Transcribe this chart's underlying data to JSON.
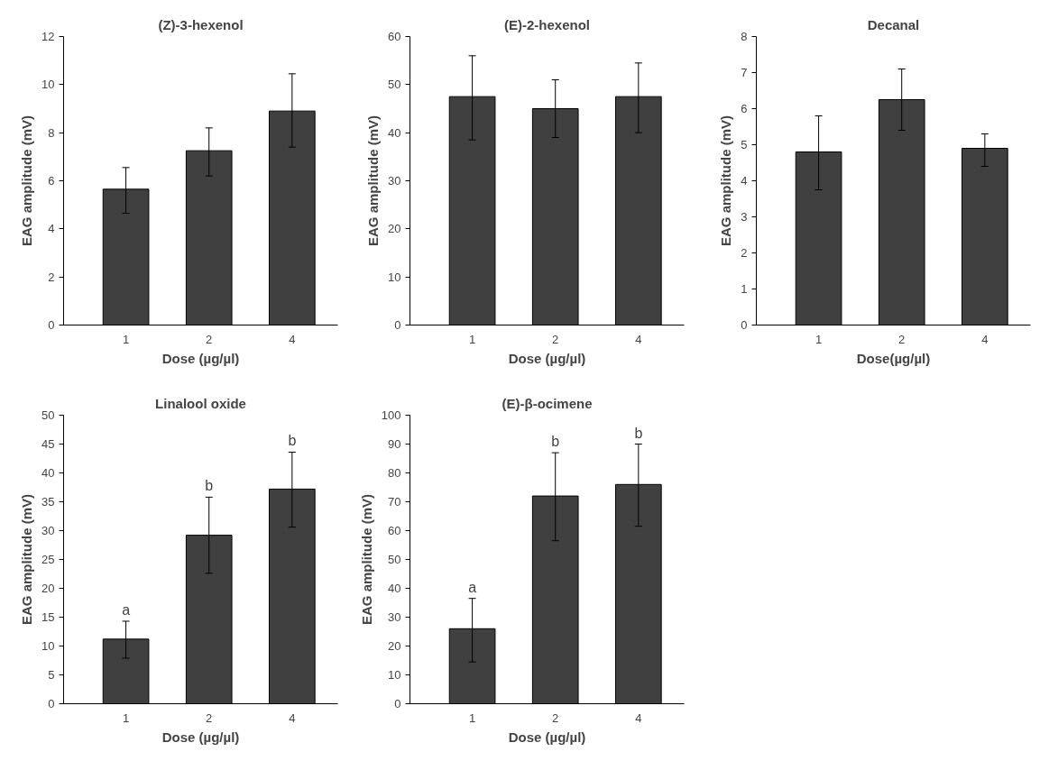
{
  "chart_data": [
    {
      "type": "bar",
      "title": "(Z)-3-hexenol",
      "xlabel": "Dose (µg/µl)",
      "ylabel": "EAG amplitude (mV)",
      "categories": [
        "1",
        "2",
        "4"
      ],
      "values": [
        5.65,
        7.25,
        8.9
      ],
      "errors": [
        [
          4.65,
          6.55
        ],
        [
          6.2,
          8.2
        ],
        [
          7.4,
          10.45
        ]
      ],
      "color": "#404040",
      "ylim": [
        0,
        12
      ],
      "yticks": [
        0,
        2,
        4,
        6,
        8,
        10,
        12
      ],
      "grid": false
    },
    {
      "type": "bar",
      "title": "(E)-2-hexenol",
      "xlabel": "Dose (µg/µl)",
      "ylabel": "EAG amplitude (mV)",
      "categories": [
        "1",
        "2",
        "4"
      ],
      "values": [
        47.5,
        45,
        47.5
      ],
      "errors": [
        [
          38.5,
          56
        ],
        [
          39,
          51
        ],
        [
          40,
          54.5
        ]
      ],
      "color": "#404040",
      "ylim": [
        0,
        60
      ],
      "yticks": [
        0,
        10,
        20,
        30,
        40,
        50,
        60
      ],
      "grid": false
    },
    {
      "type": "bar",
      "title": "Decanal",
      "xlabel": "Dose(µg/µl)",
      "ylabel": "EAG amplitude (mV)",
      "categories": [
        "1",
        "2",
        "4"
      ],
      "values": [
        4.8,
        6.25,
        4.9
      ],
      "errors": [
        [
          3.75,
          5.8
        ],
        [
          5.4,
          7.1
        ],
        [
          4.4,
          5.3
        ]
      ],
      "color": "#404040",
      "ylim": [
        0,
        8
      ],
      "yticks": [
        0,
        1,
        2,
        3,
        4,
        5,
        6,
        7,
        8
      ],
      "grid": false
    },
    {
      "type": "bar",
      "title": "Linalool oxide",
      "xlabel": "Dose (µg/µl)",
      "ylabel": "EAG amplitude (mV)",
      "categories": [
        "1",
        "2",
        "4"
      ],
      "values": [
        11.2,
        29.2,
        37.2
      ],
      "errors": [
        [
          7.9,
          14.3
        ],
        [
          22.6,
          35.8
        ],
        [
          30.6,
          43.6
        ]
      ],
      "color": "#404040",
      "ylim": [
        0,
        50
      ],
      "yticks": [
        0,
        5,
        10,
        15,
        20,
        25,
        30,
        35,
        40,
        45,
        50
      ],
      "grid": false,
      "annotations": [
        {
          "text": "a",
          "x": "1",
          "y": 14.3
        },
        {
          "text": "b",
          "x": "2",
          "y": 35.8
        },
        {
          "text": "b",
          "x": "4",
          "y": 43.6
        }
      ]
    },
    {
      "type": "bar",
      "title": "(E)-β-ocimene",
      "xlabel": "Dose (µg/µl)",
      "ylabel": "EAG amplitude (mV)",
      "categories": [
        "1",
        "2",
        "4"
      ],
      "values": [
        26,
        72,
        76
      ],
      "errors": [
        [
          14.5,
          36.5
        ],
        [
          56.5,
          87
        ],
        [
          61.5,
          90
        ]
      ],
      "color": "#404040",
      "ylim": [
        0,
        100
      ],
      "yticks": [
        0,
        10,
        20,
        30,
        40,
        50,
        60,
        70,
        80,
        90,
        100
      ],
      "grid": false,
      "annotations": [
        {
          "text": "a",
          "x": "1",
          "y": 36.5
        },
        {
          "text": "b",
          "x": "2",
          "y": 87
        },
        {
          "text": "b",
          "x": "4",
          "y": 90
        }
      ]
    }
  ]
}
